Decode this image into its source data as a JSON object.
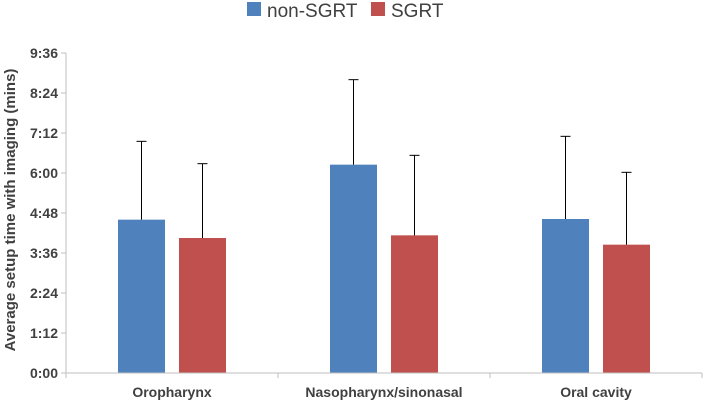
{
  "chart_data": {
    "type": "bar",
    "title": "",
    "xlabel": "",
    "ylabel": "Average setup time with imaging (mins)",
    "categories": [
      "Oropharynx",
      "Nasopharynx/sinonasal",
      "Oral cavity"
    ],
    "series": [
      {
        "name": "non-SGRT",
        "color": "#4F81BD",
        "values": [
          4.6,
          6.25,
          4.62
        ],
        "error_plus": [
          2.35,
          2.55,
          2.48
        ]
      },
      {
        "name": "SGRT",
        "color": "#C0504D",
        "values": [
          4.05,
          4.13,
          3.85
        ],
        "error_plus": [
          2.23,
          2.4,
          2.17
        ]
      }
    ],
    "y_ticks": [
      "0:00",
      "1:12",
      "2:24",
      "3:36",
      "4:48",
      "6:00",
      "7:12",
      "8:24",
      "9:36"
    ],
    "y_tick_values": [
      0,
      1.2,
      2.4,
      3.6,
      4.8,
      6.0,
      7.2,
      8.4,
      9.6
    ],
    "ylim": [
      0,
      9.6
    ],
    "legend_position": "top-center",
    "grid": false
  }
}
